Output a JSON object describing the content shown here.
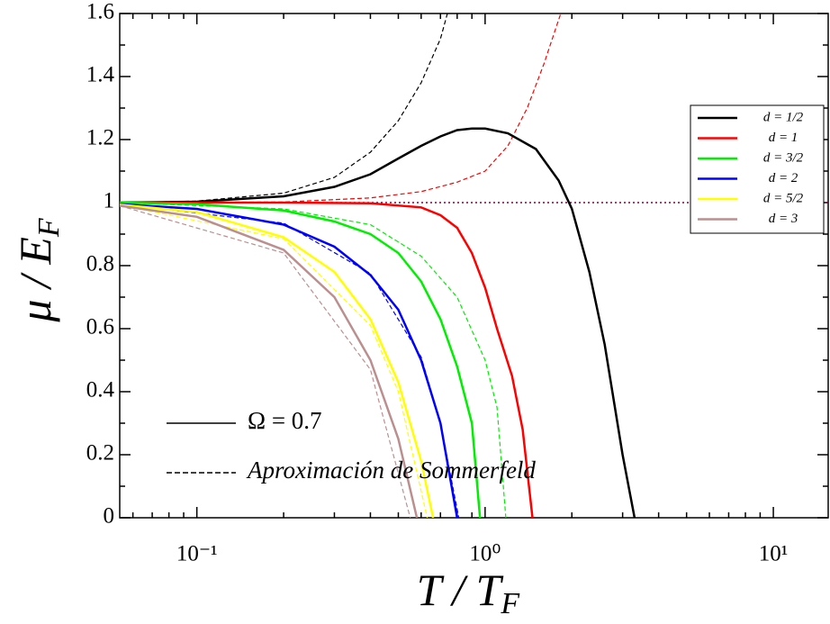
{
  "chart_data": {
    "type": "line",
    "xlabel": {
      "main": "T /  T",
      "sub": "F"
    },
    "ylabel": {
      "main": "μ / E",
      "sub": "F"
    },
    "xscale": "log",
    "xlim": [
      0.054,
      15.5
    ],
    "ylim": [
      0,
      1.6
    ],
    "xticks": [
      {
        "value": 0.1,
        "label": "10⁻¹"
      },
      {
        "value": 1,
        "label": "10⁰"
      },
      {
        "value": 10,
        "label": "10¹"
      }
    ],
    "minor_xticks": [
      0.06,
      0.07,
      0.08,
      0.09,
      0.2,
      0.3,
      0.4,
      0.5,
      0.6,
      0.7,
      0.8,
      0.9,
      2,
      3,
      4,
      5,
      6,
      7,
      8,
      9
    ],
    "yticks": [
      0,
      0.2,
      0.4,
      0.6,
      0.8,
      1,
      1.2,
      1.4,
      1.6
    ],
    "minor_yticks": [
      0.1,
      0.3,
      0.5,
      0.7,
      0.9,
      1.1,
      1.3,
      1.5
    ],
    "legend_position": "upper right",
    "reference_line": {
      "y": 1,
      "color": "#800040"
    },
    "series": [
      {
        "name": "d = 1/2",
        "color": "#000000",
        "x": [
          0.054,
          0.1,
          0.2,
          0.3,
          0.4,
          0.5,
          0.6,
          0.7,
          0.8,
          0.9,
          1.0,
          1.2,
          1.5,
          1.8,
          2.0,
          2.3,
          2.6,
          3.0,
          3.3
        ],
        "y": [
          1.0,
          1.003,
          1.02,
          1.05,
          1.09,
          1.14,
          1.18,
          1.21,
          1.23,
          1.235,
          1.235,
          1.22,
          1.17,
          1.07,
          0.98,
          0.78,
          0.55,
          0.2,
          0
        ]
      },
      {
        "name": "d = 1",
        "color": "#ff0000",
        "x": [
          0.054,
          0.2,
          0.4,
          0.6,
          0.7,
          0.8,
          0.9,
          1.0,
          1.1,
          1.24,
          1.35,
          1.46
        ],
        "y": [
          1,
          1,
          0.998,
          0.985,
          0.96,
          0.92,
          0.84,
          0.73,
          0.6,
          0.45,
          0.28,
          0
        ]
      },
      {
        "name": "d = 3/2",
        "color": "#00ee00",
        "x": [
          0.054,
          0.1,
          0.2,
          0.3,
          0.4,
          0.5,
          0.6,
          0.7,
          0.8,
          0.9,
          0.96
        ],
        "y": [
          1,
          0.995,
          0.975,
          0.94,
          0.9,
          0.84,
          0.75,
          0.63,
          0.48,
          0.3,
          0
        ]
      },
      {
        "name": "d = 2",
        "color": "#0000ff",
        "x": [
          0.054,
          0.1,
          0.2,
          0.3,
          0.4,
          0.5,
          0.6,
          0.7,
          0.8
        ],
        "y": [
          0.995,
          0.98,
          0.93,
          0.86,
          0.77,
          0.66,
          0.5,
          0.3,
          0
        ]
      },
      {
        "name": "d = 5/2",
        "color": "#ffff00",
        "x": [
          0.054,
          0.1,
          0.2,
          0.3,
          0.4,
          0.5,
          0.6,
          0.66
        ],
        "y": [
          0.993,
          0.97,
          0.89,
          0.78,
          0.63,
          0.43,
          0.18,
          0
        ]
      },
      {
        "name": "d = 3",
        "color": "#bc8f8f",
        "x": [
          0.054,
          0.1,
          0.2,
          0.3,
          0.4,
          0.5,
          0.58
        ],
        "y": [
          0.99,
          0.955,
          0.85,
          0.7,
          0.5,
          0.25,
          0
        ]
      }
    ],
    "sommerfeld_series": [
      {
        "color": "#000000",
        "x": [
          0.054,
          0.1,
          0.2,
          0.3,
          0.4,
          0.5,
          0.6,
          0.7,
          0.74
        ],
        "y": [
          1,
          1.005,
          1.03,
          1.08,
          1.16,
          1.26,
          1.38,
          1.52,
          1.6
        ]
      },
      {
        "color": "#ff0000",
        "x": [
          0.054,
          0.2,
          0.4,
          0.6,
          0.8,
          1.0,
          1.2,
          1.4,
          1.6,
          1.83
        ],
        "y": [
          1,
          1.002,
          1.015,
          1.035,
          1.065,
          1.1,
          1.18,
          1.3,
          1.44,
          1.6
        ]
      },
      {
        "color": "#00ee00",
        "x": [
          0.054,
          0.2,
          0.4,
          0.6,
          0.8,
          1.0,
          1.1,
          1.18
        ],
        "y": [
          1,
          0.98,
          0.93,
          0.83,
          0.7,
          0.5,
          0.35,
          0
        ]
      },
      {
        "color": "#0000ff",
        "x": [
          0.054,
          0.2,
          0.4,
          0.6,
          0.7,
          0.81
        ],
        "y": [
          0.995,
          0.935,
          0.775,
          0.51,
          0.3,
          0
        ]
      },
      {
        "color": "#ffff00",
        "x": [
          0.054,
          0.2,
          0.4,
          0.5,
          0.63
        ],
        "y": [
          0.993,
          0.885,
          0.61,
          0.4,
          0
        ]
      },
      {
        "color": "#bc8f8f",
        "x": [
          0.054,
          0.2,
          0.4,
          0.55
        ],
        "y": [
          0.99,
          0.84,
          0.47,
          0
        ]
      }
    ],
    "style_legend": [
      {
        "label": "Ω = 0.7",
        "dashed": false
      },
      {
        "label": "Aproximación de Sommerfeld",
        "dashed": true
      }
    ]
  }
}
